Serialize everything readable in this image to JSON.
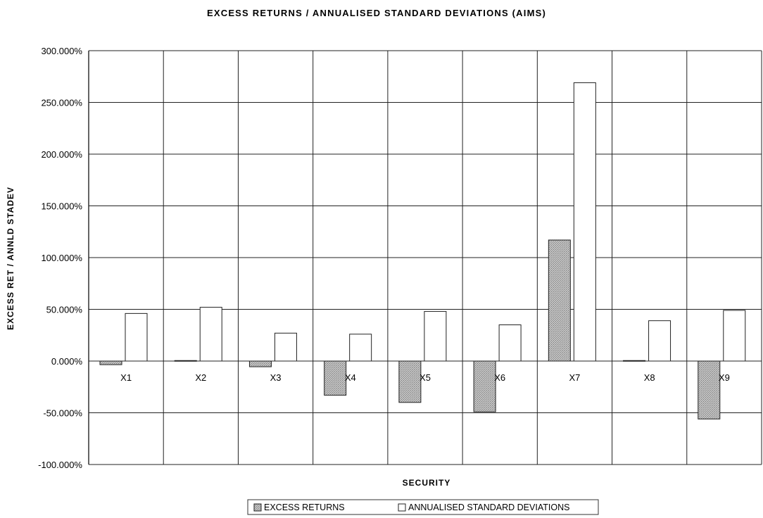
{
  "chart_data": {
    "type": "bar",
    "title": "EXCESS RETURNS / ANNUALISED STANDARD DEVIATIONS (AIMS)",
    "xlabel": "SECURITY",
    "ylabel": "EXCESS RET / ANNLD STADEV",
    "categories": [
      "X1",
      "X2",
      "X3",
      "X4",
      "X5",
      "X6",
      "X7",
      "X8",
      "X9"
    ],
    "series": [
      {
        "name": "EXCESS RETURNS",
        "values": [
          -3.5,
          0.5,
          -5.5,
          -33,
          -40,
          -49,
          117,
          0.5,
          -56
        ],
        "color": "#b8b8b8"
      },
      {
        "name": "ANNUALISED STANDARD DEVIATIONS",
        "values": [
          46,
          52,
          27,
          26,
          48,
          35,
          269,
          39,
          49
        ],
        "color": "#ffffff"
      }
    ],
    "ylim": [
      -100,
      300
    ],
    "yticks": [
      300,
      250,
      200,
      150,
      100,
      50,
      0,
      -50,
      -100
    ],
    "ytick_labels": [
      "300.000%",
      "250.000%",
      "200.000%",
      "150.000%",
      "100.000%",
      "50.000%",
      "0.000%",
      "-50.000%",
      "-100.000%"
    ],
    "grid": true,
    "legend_position": "bottom-center"
  }
}
